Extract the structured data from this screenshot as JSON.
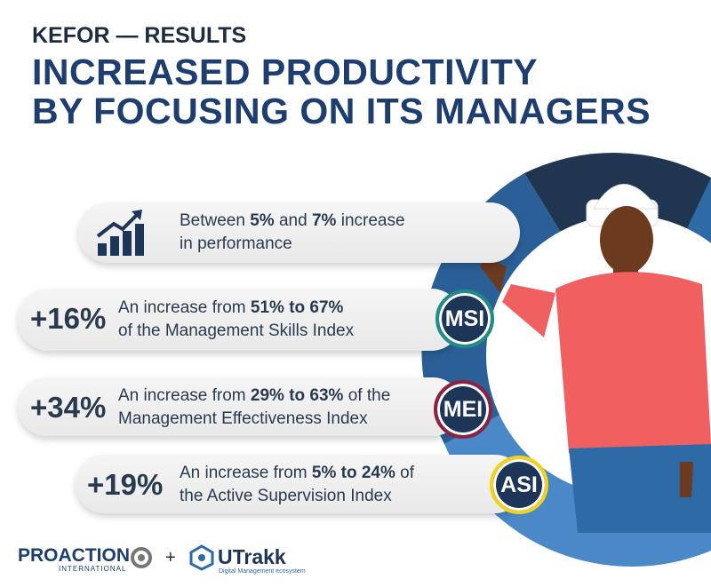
{
  "header": {
    "kicker": "KEFOR — RESULTS",
    "title_lines": [
      "INCREASED PRODUCTIVITY",
      "BY FOCUSING ON ITS MANAGERS"
    ]
  },
  "items": [
    {
      "lines": [
        [
          {
            "text": "Between "
          },
          {
            "text": "5%",
            "bold": true
          },
          {
            "text": " and "
          },
          {
            "text": "7%",
            "bold": true
          },
          {
            "text": " increase"
          }
        ],
        [
          {
            "text": "in performance"
          }
        ]
      ]
    },
    {
      "stat": "+16%",
      "badge": "MSI",
      "badge_color": "#1f8c86",
      "lines": [
        [
          {
            "text": "An increase from "
          },
          {
            "text": "51% to 67%",
            "bold": true
          }
        ],
        [
          {
            "text": "of the Management Skills Index"
          }
        ]
      ]
    },
    {
      "stat": "+34%",
      "badge": "MEI",
      "badge_color": "#8a2341",
      "lines": [
        [
          {
            "text": "An increase from "
          },
          {
            "text": "29% to 63%",
            "bold": true
          },
          {
            "text": " of the"
          }
        ],
        [
          {
            "text": "Management Effectiveness Index"
          }
        ]
      ]
    },
    {
      "stat": "+19%",
      "badge": "ASI",
      "badge_color": "#f2d21b",
      "lines": [
        [
          {
            "text": "An increase from "
          },
          {
            "text": "5% to 24%",
            "bold": true
          },
          {
            "text": " of"
          }
        ],
        [
          {
            "text": "the Active Supervision Index"
          }
        ]
      ]
    }
  ],
  "footer": {
    "brand1": "PROACTION",
    "brand1_sub": "INTERNATIONAL",
    "plus": "+",
    "brand2": "UTrakk",
    "brand2_sub": "Digital Management ecosystem"
  }
}
